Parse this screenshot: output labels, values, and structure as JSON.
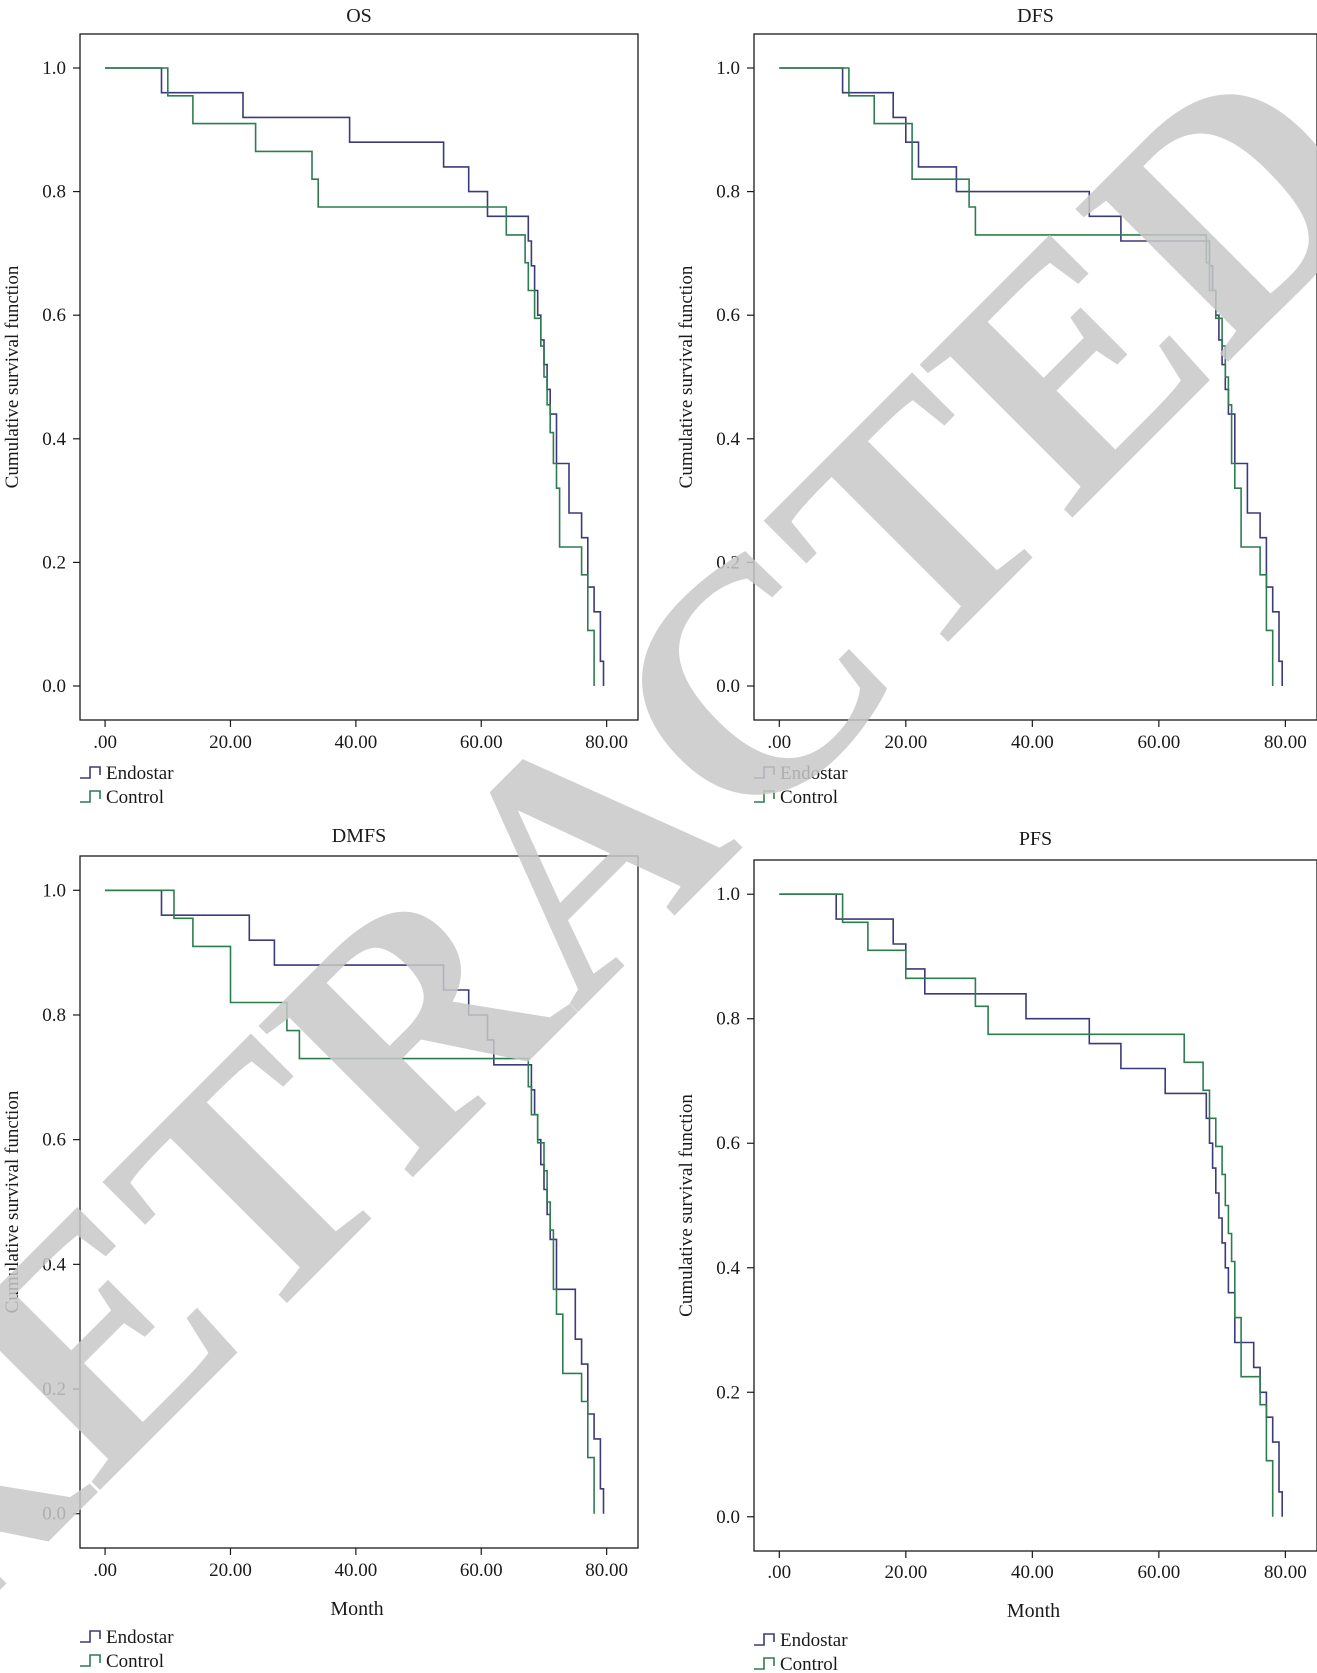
{
  "watermark": {
    "text": "RETRACTED",
    "color": "#c8c8c8"
  },
  "colors": {
    "endostar": "#3b3a7a",
    "control": "#2e7d4f",
    "frame": "#1a1a1a"
  },
  "chart_data": [
    {
      "type": "line",
      "subtype": "kaplan-meier-step",
      "title": "OS",
      "xlabel": "",
      "ylabel": "Cumulative survival function",
      "xlim": [
        -4,
        85
      ],
      "ylim": [
        -0.055,
        1.055
      ],
      "xticks": [
        0,
        20,
        40,
        60,
        80
      ],
      "xtick_labels": [
        ".00",
        "20.00",
        "40.00",
        "60.00",
        "80.00"
      ],
      "yticks": [
        0,
        0.2,
        0.4,
        0.6,
        0.8,
        1.0
      ],
      "ytick_labels": [
        "0.0",
        "0.2",
        "0.4",
        "0.6",
        "0.8",
        "1.0"
      ],
      "legend": {
        "placement": "below-left",
        "entries": [
          "Endostar",
          "Control"
        ]
      },
      "series": [
        {
          "name": "Endostar",
          "x": [
            0,
            9,
            22,
            39,
            54,
            58,
            61,
            67.5,
            68,
            68.5,
            69,
            69.5,
            70,
            70.5,
            71,
            72,
            74,
            76,
            77,
            78,
            79,
            79.5
          ],
          "y": [
            1.0,
            0.96,
            0.92,
            0.88,
            0.84,
            0.8,
            0.76,
            0.72,
            0.68,
            0.64,
            0.6,
            0.56,
            0.52,
            0.48,
            0.44,
            0.36,
            0.28,
            0.24,
            0.16,
            0.12,
            0.04,
            0.0
          ]
        },
        {
          "name": "Control",
          "x": [
            0,
            10,
            14,
            24,
            33,
            34,
            61,
            64,
            67,
            67.5,
            68.5,
            69.5,
            70,
            70.5,
            71,
            71.5,
            72,
            72.5,
            76,
            77,
            78
          ],
          "y": [
            1.0,
            0.955,
            0.91,
            0.865,
            0.82,
            0.775,
            0.775,
            0.73,
            0.685,
            0.64,
            0.595,
            0.55,
            0.5,
            0.455,
            0.41,
            0.36,
            0.32,
            0.225,
            0.18,
            0.09,
            0.0
          ]
        }
      ]
    },
    {
      "type": "line",
      "subtype": "kaplan-meier-step",
      "title": "DFS",
      "xlabel": "",
      "ylabel": "Cumulative survival function",
      "xlim": [
        -4,
        85
      ],
      "ylim": [
        -0.055,
        1.055
      ],
      "xticks": [
        0,
        20,
        40,
        60,
        80
      ],
      "xtick_labels": [
        ".00",
        "20.00",
        "40.00",
        "60.00",
        "80.00"
      ],
      "yticks": [
        0,
        0.2,
        0.4,
        0.6,
        0.8,
        1.0
      ],
      "ytick_labels": [
        "0.0",
        "0.2",
        "0.4",
        "0.6",
        "0.8",
        "1.0"
      ],
      "legend": {
        "placement": "below-left",
        "entries": [
          "Endostar",
          "Control"
        ]
      },
      "series": [
        {
          "name": "Endostar",
          "x": [
            0,
            10,
            18,
            20,
            22,
            28,
            49,
            54,
            68,
            68.5,
            69,
            69.5,
            70,
            70.5,
            71,
            72,
            74,
            76,
            77,
            78,
            79,
            79.5
          ],
          "y": [
            1.0,
            0.96,
            0.92,
            0.88,
            0.84,
            0.8,
            0.76,
            0.72,
            0.68,
            0.64,
            0.6,
            0.56,
            0.52,
            0.48,
            0.44,
            0.36,
            0.28,
            0.24,
            0.16,
            0.12,
            0.04,
            0.0
          ]
        },
        {
          "name": "Control",
          "x": [
            0,
            11,
            15,
            21,
            30,
            31,
            67.5,
            68,
            69,
            70,
            70.5,
            71,
            71.5,
            72,
            73,
            76,
            77,
            78
          ],
          "y": [
            1.0,
            0.955,
            0.91,
            0.82,
            0.775,
            0.73,
            0.685,
            0.64,
            0.595,
            0.55,
            0.5,
            0.455,
            0.36,
            0.32,
            0.225,
            0.18,
            0.09,
            0.0
          ]
        }
      ]
    },
    {
      "type": "line",
      "subtype": "kaplan-meier-step",
      "title": "DMFS",
      "xlabel": "Month",
      "ylabel": "Cumulative survival function",
      "xlim": [
        -4,
        85
      ],
      "ylim": [
        -0.055,
        1.055
      ],
      "xticks": [
        0,
        20,
        40,
        60,
        80
      ],
      "xtick_labels": [
        ".00",
        "20.00",
        "40.00",
        "60.00",
        "80.00"
      ],
      "yticks": [
        0,
        0.2,
        0.4,
        0.6,
        0.8,
        1.0
      ],
      "ytick_labels": [
        "0.0",
        "0.2",
        "0.4",
        "0.6",
        "0.8",
        "1.0"
      ],
      "legend": {
        "placement": "below-left",
        "entries": [
          "Endostar",
          "Control"
        ]
      },
      "series": [
        {
          "name": "Endostar",
          "x": [
            0,
            9,
            23,
            27,
            54,
            58,
            61,
            62,
            68,
            68.5,
            69,
            69.5,
            70,
            70.5,
            71,
            72,
            75,
            76,
            77,
            78,
            79,
            79.5
          ],
          "y": [
            1.0,
            0.96,
            0.92,
            0.88,
            0.84,
            0.8,
            0.76,
            0.72,
            0.68,
            0.64,
            0.6,
            0.56,
            0.52,
            0.48,
            0.44,
            0.36,
            0.28,
            0.24,
            0.16,
            0.12,
            0.04,
            0.0
          ]
        },
        {
          "name": "Control",
          "x": [
            0,
            11,
            14,
            20,
            29,
            31,
            67.5,
            68,
            69,
            70,
            70.5,
            71,
            71.5,
            72,
            73,
            76,
            77,
            78
          ],
          "y": [
            1.0,
            0.955,
            0.91,
            0.82,
            0.775,
            0.73,
            0.685,
            0.64,
            0.595,
            0.55,
            0.5,
            0.455,
            0.36,
            0.32,
            0.225,
            0.18,
            0.09,
            0.0
          ]
        }
      ]
    },
    {
      "type": "line",
      "subtype": "kaplan-meier-step",
      "title": "PFS",
      "xlabel": "Month",
      "ylabel": "Cumulative survival function",
      "xlim": [
        -4,
        85
      ],
      "ylim": [
        -0.055,
        1.055
      ],
      "xticks": [
        0,
        20,
        40,
        60,
        80
      ],
      "xtick_labels": [
        ".00",
        "20.00",
        "40.00",
        "60.00",
        "80.00"
      ],
      "yticks": [
        0,
        0.2,
        0.4,
        0.6,
        0.8,
        1.0
      ],
      "ytick_labels": [
        "0.0",
        "0.2",
        "0.4",
        "0.6",
        "0.8",
        "1.0"
      ],
      "legend": {
        "placement": "below-left",
        "entries": [
          "Endostar",
          "Control"
        ]
      },
      "series": [
        {
          "name": "Endostar",
          "x": [
            0,
            9,
            18,
            20,
            23,
            27,
            39,
            49,
            54,
            61,
            67,
            67.5,
            68,
            68.5,
            69,
            69.5,
            70,
            70.5,
            71,
            72,
            75,
            76,
            77,
            78,
            79,
            79.5
          ],
          "y": [
            1.0,
            0.96,
            0.92,
            0.88,
            0.84,
            0.84,
            0.8,
            0.76,
            0.72,
            0.68,
            0.68,
            0.64,
            0.6,
            0.56,
            0.52,
            0.48,
            0.44,
            0.4,
            0.36,
            0.28,
            0.24,
            0.2,
            0.16,
            0.12,
            0.04,
            0.0
          ]
        },
        {
          "name": "Control",
          "x": [
            0,
            10,
            14,
            20,
            23,
            31,
            33,
            64,
            67,
            68,
            69,
            70,
            70.5,
            71,
            71.5,
            72,
            73,
            76,
            77,
            78
          ],
          "y": [
            1.0,
            0.955,
            0.91,
            0.865,
            0.865,
            0.82,
            0.775,
            0.73,
            0.685,
            0.64,
            0.595,
            0.55,
            0.5,
            0.455,
            0.41,
            0.32,
            0.225,
            0.18,
            0.09,
            0.0
          ]
        }
      ]
    }
  ]
}
